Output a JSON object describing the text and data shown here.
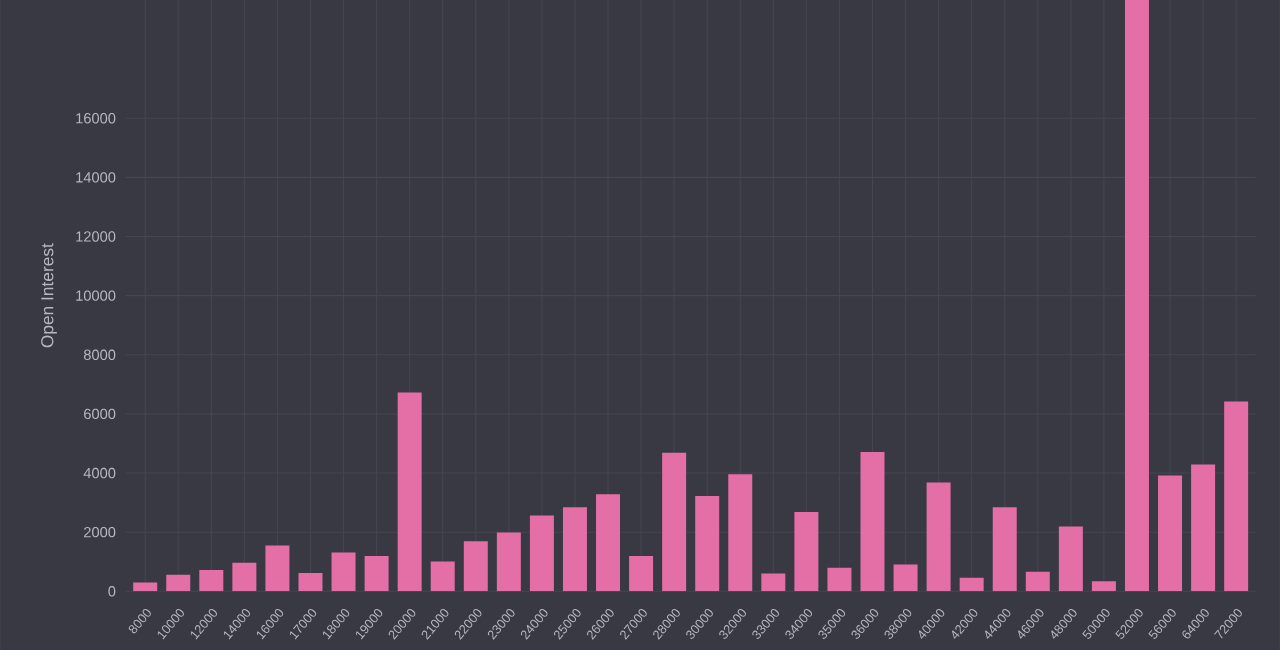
{
  "chart_data": {
    "type": "bar",
    "ylabel": "Open Interest",
    "categories": [
      "8000",
      "10000",
      "12000",
      "14000",
      "16000",
      "17000",
      "18000",
      "19000",
      "20000",
      "21000",
      "22000",
      "23000",
      "24000",
      "25000",
      "26000",
      "27000",
      "28000",
      "30000",
      "32000",
      "33000",
      "34000",
      "35000",
      "36000",
      "38000",
      "40000",
      "42000",
      "44000",
      "46000",
      "48000",
      "50000",
      "52000",
      "56000",
      "64000",
      "72000"
    ],
    "values": [
      300,
      560,
      720,
      970,
      1550,
      620,
      1310,
      1190,
      6720,
      1010,
      1690,
      1990,
      2560,
      2840,
      3280,
      1190,
      4690,
      3220,
      3960,
      600,
      2680,
      800,
      4710,
      910,
      3680,
      460,
      2840,
      660,
      2190,
      340,
      20000,
      3920,
      4290,
      6420
    ],
    "color": "#e46ea6",
    "ylim": [
      0,
      20000
    ],
    "yticks": [
      0,
      2000,
      4000,
      6000,
      8000,
      10000,
      12000,
      14000,
      16000
    ],
    "grid": true
  }
}
